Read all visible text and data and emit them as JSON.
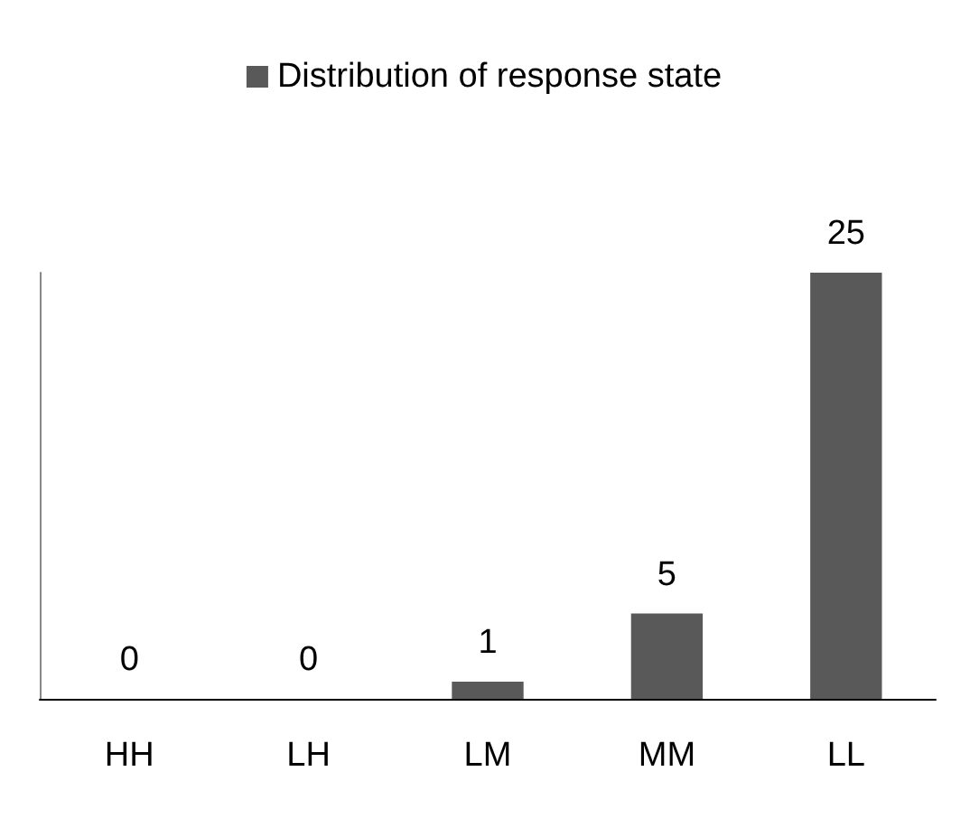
{
  "chart_data": {
    "type": "bar",
    "categories": [
      "HH",
      "LH",
      "LM",
      "MM",
      "LL"
    ],
    "series": [
      {
        "name": "Distribution of response state",
        "color": "#595959",
        "values": [
          0,
          0,
          1,
          5,
          25
        ]
      }
    ],
    "data_labels": true,
    "legend": "top",
    "grid": false
  }
}
